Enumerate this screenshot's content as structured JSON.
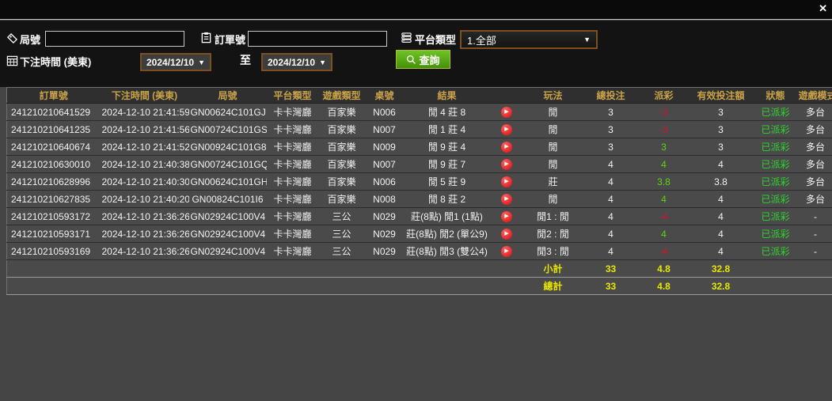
{
  "icons": {
    "close": "✕",
    "dropdown_arrow": "▼",
    "play": "▶"
  },
  "filters": {
    "game_no_label": "局號",
    "game_no_value": "",
    "order_no_label": "訂單號",
    "order_no_value": "",
    "platform_type_label": "平台類型",
    "platform_type_value": "1.全部",
    "bet_time_label": "下注時間 (美東)",
    "date_from": "2024/12/10",
    "date_to_separator": "至",
    "date_to": "2024/12/10",
    "search_button_label": "查詢"
  },
  "table": {
    "headers": [
      "訂單號",
      "下注時間 (美東)",
      "局號",
      "平台類型",
      "遊戲類型",
      "桌號",
      "結果",
      "",
      "玩法",
      "總投注",
      "派彩",
      "有效投注額",
      "狀態",
      "遊戲模式"
    ],
    "rows": [
      {
        "order_no": "241210210641529",
        "bet_time": "2024-12-10 21:41:59",
        "round_no": "GN00624C101GJ",
        "platform": "卡卡灣廳",
        "game_type": "百家樂",
        "table_no": "N006",
        "result": "閒 4 莊 8",
        "play": "閒",
        "total_bet": "3",
        "payout": "-3",
        "valid_bet": "3",
        "status": "已派彩",
        "mode": "多台"
      },
      {
        "order_no": "241210210641235",
        "bet_time": "2024-12-10 21:41:56",
        "round_no": "GN00724C101GS",
        "platform": "卡卡灣廳",
        "game_type": "百家樂",
        "table_no": "N007",
        "result": "閒 1 莊 4",
        "play": "閒",
        "total_bet": "3",
        "payout": "-3",
        "valid_bet": "3",
        "status": "已派彩",
        "mode": "多台"
      },
      {
        "order_no": "241210210640674",
        "bet_time": "2024-12-10 21:41:52",
        "round_no": "GN00924C101G8",
        "platform": "卡卡灣廳",
        "game_type": "百家樂",
        "table_no": "N009",
        "result": "閒 9 莊 4",
        "play": "閒",
        "total_bet": "3",
        "payout": "3",
        "valid_bet": "3",
        "status": "已派彩",
        "mode": "多台"
      },
      {
        "order_no": "241210210630010",
        "bet_time": "2024-12-10 21:40:38",
        "round_no": "GN00724C101GQ",
        "platform": "卡卡灣廳",
        "game_type": "百家樂",
        "table_no": "N007",
        "result": "閒 9 莊 7",
        "play": "閒",
        "total_bet": "4",
        "payout": "4",
        "valid_bet": "4",
        "status": "已派彩",
        "mode": "多台"
      },
      {
        "order_no": "241210210628996",
        "bet_time": "2024-12-10 21:40:30",
        "round_no": "GN00624C101GH",
        "platform": "卡卡灣廳",
        "game_type": "百家樂",
        "table_no": "N006",
        "result": "閒 5 莊 9",
        "play": "莊",
        "total_bet": "4",
        "payout": "3.8",
        "valid_bet": "3.8",
        "status": "已派彩",
        "mode": "多台"
      },
      {
        "order_no": "241210210627835",
        "bet_time": "2024-12-10 21:40:20",
        "round_no": "GN00824C101I6",
        "platform": "卡卡灣廳",
        "game_type": "百家樂",
        "table_no": "N008",
        "result": "閒 8 莊 2",
        "play": "閒",
        "total_bet": "4",
        "payout": "4",
        "valid_bet": "4",
        "status": "已派彩",
        "mode": "多台"
      },
      {
        "order_no": "241210210593172",
        "bet_time": "2024-12-10 21:36:26",
        "round_no": "GN02924C100V4",
        "platform": "卡卡灣廳",
        "game_type": "三公",
        "table_no": "N029",
        "result": "莊(8點) 閒1 (1點)",
        "play": "閒1 : 閒",
        "total_bet": "4",
        "payout": "-4",
        "valid_bet": "4",
        "status": "已派彩",
        "mode": "-"
      },
      {
        "order_no": "241210210593171",
        "bet_time": "2024-12-10 21:36:26",
        "round_no": "GN02924C100V4",
        "platform": "卡卡灣廳",
        "game_type": "三公",
        "table_no": "N029",
        "result": "莊(8點) 閒2 (單公9)",
        "play": "閒2 : 閒",
        "total_bet": "4",
        "payout": "4",
        "valid_bet": "4",
        "status": "已派彩",
        "mode": "-"
      },
      {
        "order_no": "241210210593169",
        "bet_time": "2024-12-10 21:36:26",
        "round_no": "GN02924C100V4",
        "platform": "卡卡灣廳",
        "game_type": "三公",
        "table_no": "N029",
        "result": "莊(8點) 閒3 (雙公4)",
        "play": "閒3 : 閒",
        "total_bet": "4",
        "payout": "-4",
        "valid_bet": "4",
        "status": "已派彩",
        "mode": "-"
      }
    ],
    "subtotal": {
      "label": "小計",
      "total_bet": "33",
      "payout": "4.8",
      "valid_bet": "32.8"
    },
    "grand_total": {
      "label": "總計",
      "total_bet": "33",
      "payout": "4.8",
      "valid_bet": "32.8"
    }
  },
  "colors": {
    "header_gold": "#c9a24a",
    "row_positive_green": "#5fd40e",
    "row_negative_red": "#cf1430",
    "status_paid_green": "#2fd42f",
    "totals_yellow": "#e8e600",
    "search_button_green": "#459109",
    "accent_border_brown": "#7d4e1f",
    "table_bg": "#454545"
  }
}
